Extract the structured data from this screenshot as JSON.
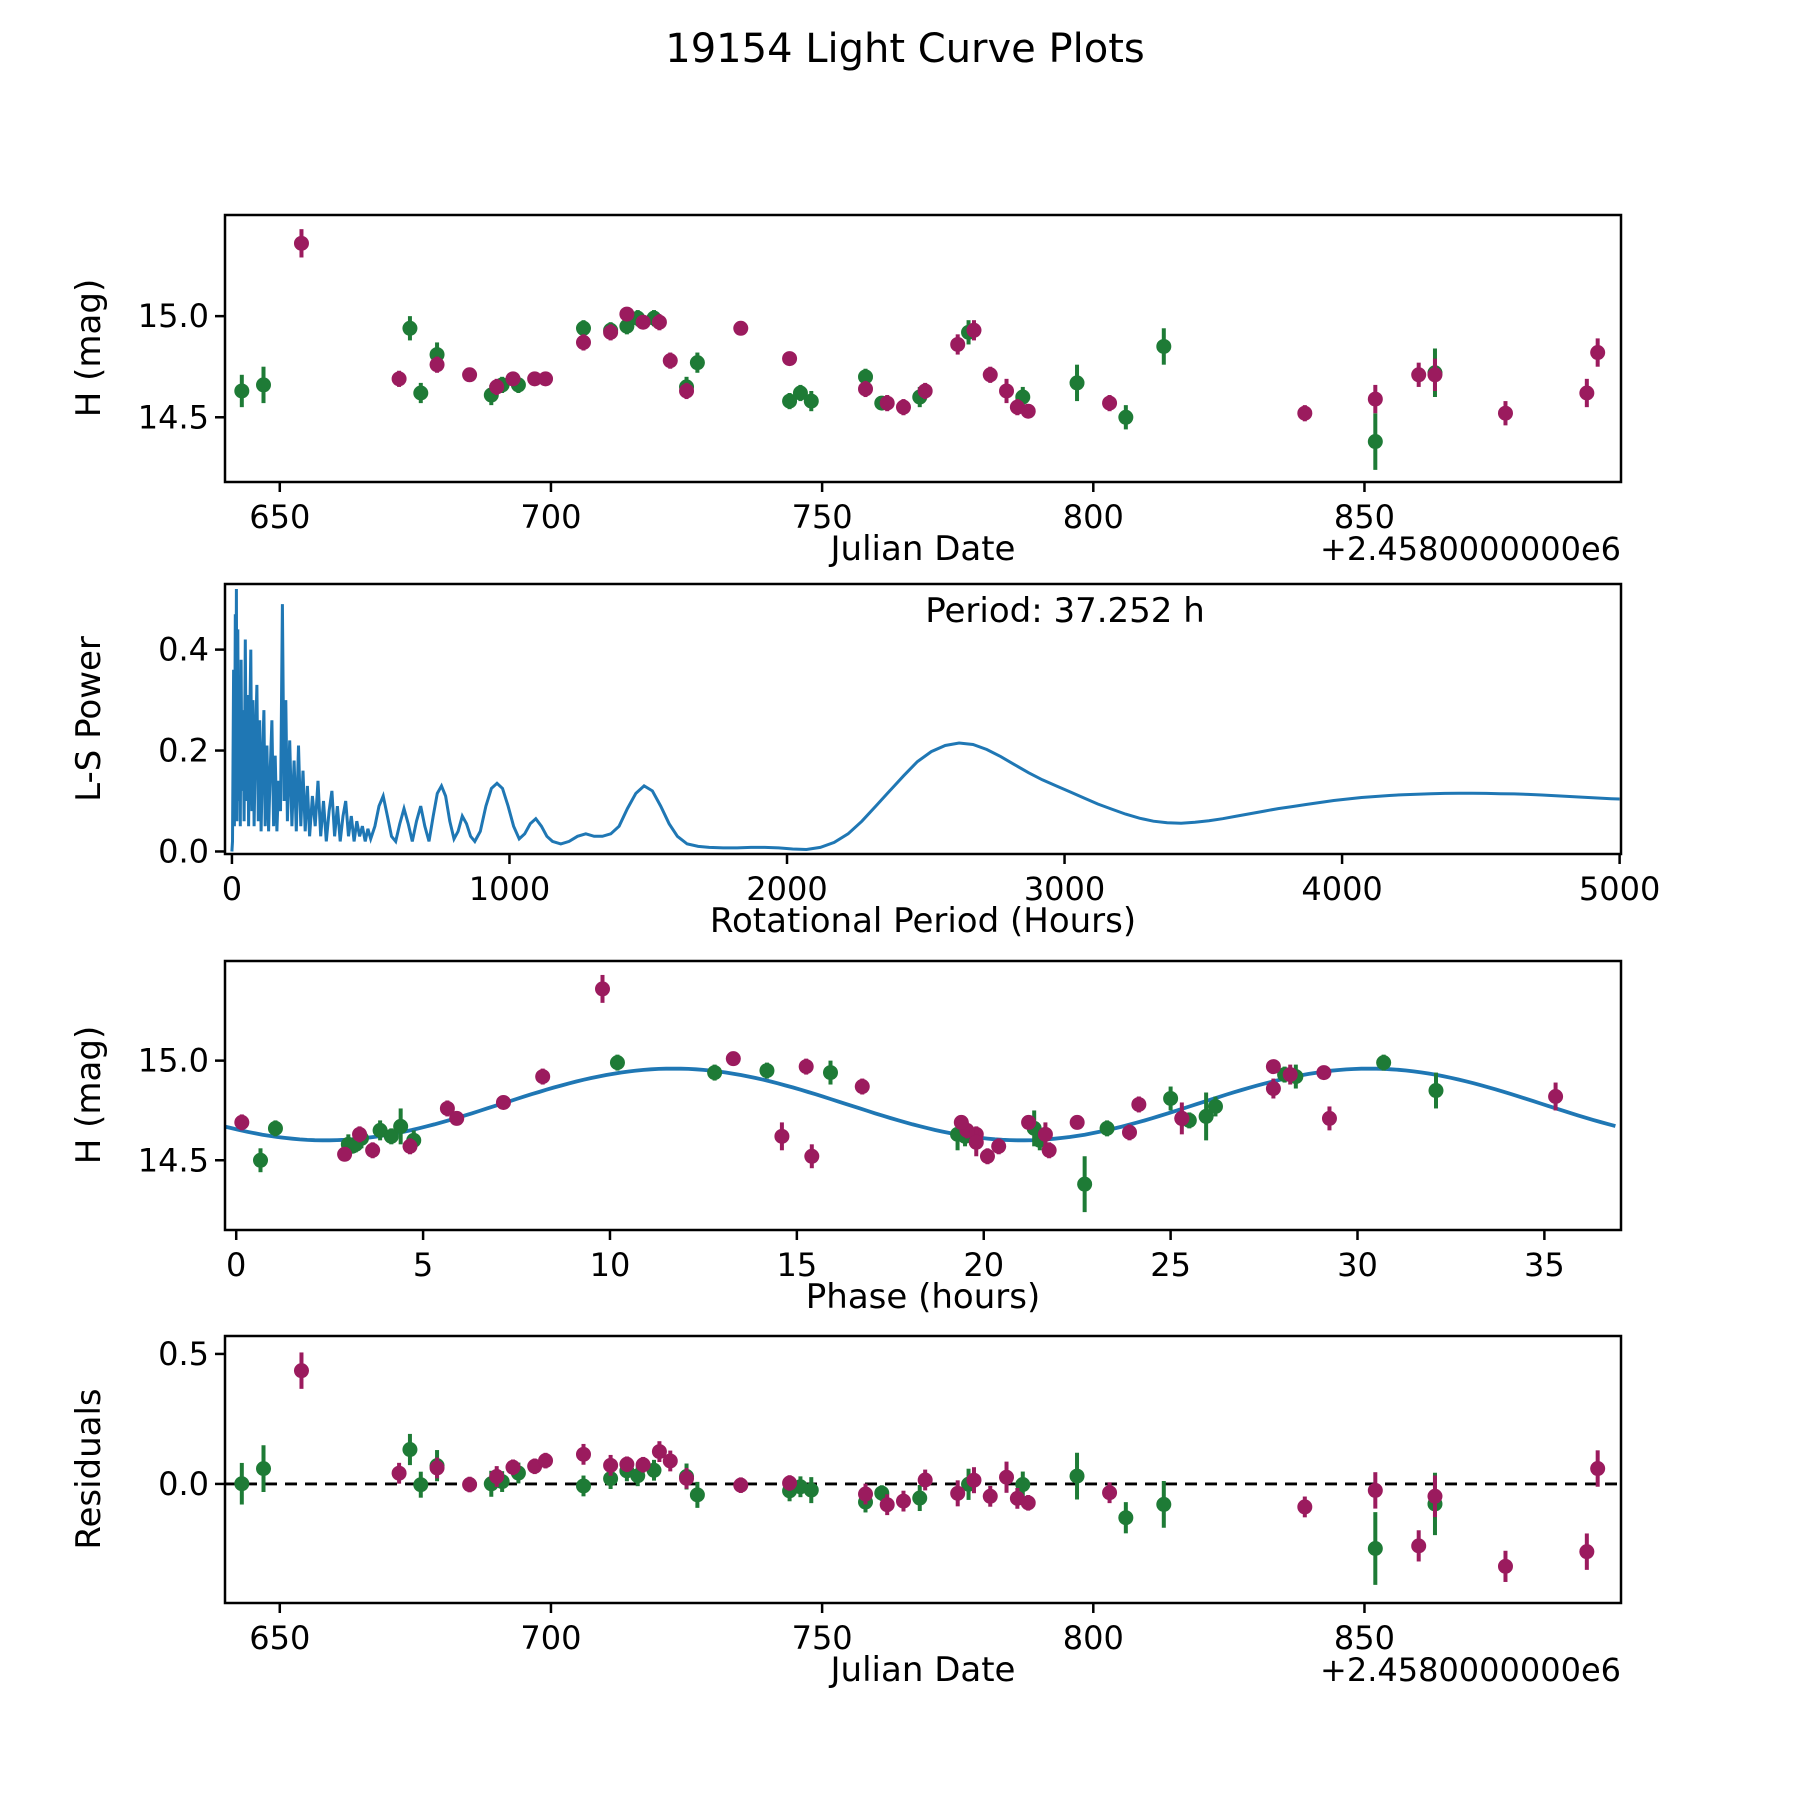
{
  "chart_data": {
    "figure_title": "19154 Light Curve Plots",
    "colors": {
      "green": "#1e7b36",
      "purple": "#9b1b5e",
      "blue": "#1f77b4",
      "axis": "#000000"
    },
    "layout_hints": {
      "grid": false,
      "legend": false,
      "panels": 4,
      "background": "#ffffff"
    },
    "fit": {
      "mean": 14.78,
      "amplitude": 0.18,
      "period_hours": 18.626,
      "phase_of_max": 11.7
    },
    "plots": [
      {
        "id": "lightcurve",
        "type": "scatter",
        "xlabel": "Julian Date",
        "ylabel": "H (mag)",
        "offset_label": "+2.4580000000e6",
        "xlim": [
          639.9,
          897.3
        ],
        "ylim": [
          14.18,
          15.5
        ],
        "xticks": {
          "values": [
            650,
            700,
            750,
            800,
            850
          ],
          "labels": [
            "650",
            "700",
            "750",
            "800",
            "850"
          ]
        },
        "yticks": {
          "values": [
            14.5,
            15.0
          ],
          "labels": [
            "14.5",
            "15.0"
          ]
        }
      },
      {
        "id": "periodogram",
        "type": "line",
        "xlabel": "Rotational Period (Hours)",
        "ylabel": "L-S Power",
        "annotation": "Period: 37.252 h",
        "xlim": [
          -25,
          5005
        ],
        "ylim": [
          -0.005,
          0.53
        ],
        "xticks": {
          "values": [
            0,
            1000,
            2000,
            3000,
            4000,
            5000
          ],
          "labels": [
            "0",
            "1000",
            "2000",
            "3000",
            "4000",
            "5000"
          ]
        },
        "yticks": {
          "values": [
            0.0,
            0.2,
            0.4
          ],
          "labels": [
            "0.0",
            "0.2",
            "0.4"
          ]
        }
      },
      {
        "id": "phase",
        "type": "scatter",
        "xlabel": "Phase (hours)",
        "ylabel": "H (mag)",
        "xlim": [
          -0.3,
          37.05
        ],
        "ylim": [
          14.15,
          15.5
        ],
        "xticks": {
          "values": [
            0,
            5,
            10,
            15,
            20,
            25,
            30,
            35
          ],
          "labels": [
            "0",
            "5",
            "10",
            "15",
            "20",
            "25",
            "30",
            "35"
          ]
        },
        "yticks": {
          "values": [
            14.5,
            15.0
          ],
          "labels": [
            "14.5",
            "15.0"
          ]
        }
      },
      {
        "id": "residuals",
        "type": "scatter",
        "xlabel": "Julian Date",
        "ylabel": "Residuals",
        "offset_label": "+2.4580000000e6",
        "xlim": [
          639.9,
          897.3
        ],
        "ylim": [
          -0.458,
          0.569
        ],
        "xticks": {
          "values": [
            650,
            700,
            750,
            800,
            850
          ],
          "labels": [
            "650",
            "700",
            "750",
            "800",
            "850"
          ]
        },
        "yticks": {
          "values": [
            0.0,
            0.5
          ],
          "labels": [
            "0.0",
            "0.5"
          ]
        },
        "zero_line": 0.0
      }
    ],
    "series": {
      "green": {
        "name": "dataset-green",
        "color": "#1e7b36",
        "columns": [
          "julian_date_minus_2458000",
          "H_mag",
          "err",
          "phase_hours"
        ],
        "points": [
          [
            643,
            14.63,
            0.08,
            19.3
          ],
          [
            647,
            14.66,
            0.09,
            21.35
          ],
          [
            674,
            14.94,
            0.06,
            15.9
          ],
          [
            676,
            14.62,
            0.05,
            19.5
          ],
          [
            679,
            14.81,
            0.06,
            25.0
          ],
          [
            689,
            14.61,
            0.05,
            3.35
          ],
          [
            691,
            14.66,
            0.04,
            23.3
          ],
          [
            694,
            14.66,
            0.04,
            1.05
          ],
          [
            706,
            14.94,
            0.04,
            12.8
          ],
          [
            711,
            14.93,
            0.04,
            28.05
          ],
          [
            714,
            14.95,
            0.04,
            14.2
          ],
          [
            716,
            14.99,
            0.04,
            30.7
          ],
          [
            719,
            14.99,
            0.04,
            10.2
          ],
          [
            725,
            14.65,
            0.05,
            3.85
          ],
          [
            727,
            14.77,
            0.05,
            26.2
          ],
          [
            744,
            14.58,
            0.04,
            3.2
          ],
          [
            746,
            14.62,
            0.04,
            4.15
          ],
          [
            748,
            14.58,
            0.05,
            3.0
          ],
          [
            758,
            14.7,
            0.04,
            25.5
          ],
          [
            761,
            14.57,
            0.03,
            3.1
          ],
          [
            768,
            14.6,
            0.05,
            4.75
          ],
          [
            777,
            14.92,
            0.06,
            28.35
          ],
          [
            787,
            14.6,
            0.05,
            21.5
          ],
          [
            797,
            14.67,
            0.09,
            4.4
          ],
          [
            806,
            14.5,
            0.06,
            0.65
          ],
          [
            813,
            14.85,
            0.09,
            32.1
          ],
          [
            852,
            14.38,
            0.14,
            22.7
          ],
          [
            863,
            14.72,
            0.12,
            25.95
          ]
        ]
      },
      "purple": {
        "name": "dataset-purple",
        "color": "#9b1b5e",
        "columns": [
          "julian_date_minus_2458000",
          "H_mag",
          "err",
          "phase_hours"
        ],
        "points": [
          [
            654,
            15.36,
            0.07,
            9.8
          ],
          [
            672,
            14.69,
            0.04,
            0.15
          ],
          [
            679,
            14.76,
            0.04,
            5.65
          ],
          [
            685,
            14.71,
            0.03,
            5.9
          ],
          [
            690,
            14.65,
            0.04,
            19.55
          ],
          [
            693,
            14.69,
            0.03,
            19.4
          ],
          [
            697,
            14.69,
            0.03,
            22.5
          ],
          [
            699,
            14.69,
            0.03,
            21.2
          ],
          [
            706,
            14.87,
            0.04,
            16.75
          ],
          [
            711,
            14.92,
            0.04,
            8.2
          ],
          [
            714,
            15.01,
            0.03,
            13.3
          ],
          [
            717,
            14.97,
            0.03,
            27.75
          ],
          [
            720,
            14.97,
            0.04,
            15.25
          ],
          [
            722,
            14.78,
            0.04,
            24.15
          ],
          [
            725,
            14.63,
            0.04,
            3.3
          ],
          [
            735,
            14.94,
            0.03,
            29.1
          ],
          [
            744,
            14.79,
            0.03,
            7.15
          ],
          [
            758,
            14.64,
            0.04,
            23.9
          ],
          [
            762,
            14.57,
            0.04,
            4.65
          ],
          [
            765,
            14.55,
            0.04,
            3.65
          ],
          [
            769,
            14.63,
            0.04,
            19.8
          ],
          [
            775,
            14.86,
            0.05,
            27.75
          ],
          [
            778,
            14.93,
            0.05,
            28.2
          ],
          [
            781,
            14.71,
            0.04,
            25.3
          ],
          [
            784,
            14.63,
            0.06,
            21.65
          ],
          [
            786,
            14.55,
            0.04,
            21.75
          ],
          [
            788,
            14.53,
            0.03,
            2.9
          ],
          [
            803,
            14.57,
            0.04,
            20.4
          ],
          [
            839,
            14.52,
            0.04,
            20.1
          ],
          [
            852,
            14.59,
            0.07,
            19.8
          ],
          [
            860,
            14.71,
            0.06,
            29.25
          ],
          [
            863,
            14.71,
            0.08,
            25.3
          ],
          [
            876,
            14.52,
            0.06,
            15.4
          ],
          [
            891,
            14.62,
            0.07,
            14.6
          ],
          [
            893,
            14.82,
            0.07,
            35.3
          ]
        ]
      }
    },
    "periodogram_curve": [
      [
        0,
        0.0
      ],
      [
        2,
        0.02
      ],
      [
        6,
        0.36
      ],
      [
        9,
        0.05
      ],
      [
        12,
        0.47
      ],
      [
        14,
        0.08
      ],
      [
        16,
        0.52
      ],
      [
        18,
        0.06
      ],
      [
        21,
        0.44
      ],
      [
        24,
        0.1
      ],
      [
        27,
        0.32
      ],
      [
        30,
        0.05
      ],
      [
        33,
        0.38
      ],
      [
        36,
        0.12
      ],
      [
        40,
        0.28
      ],
      [
        44,
        0.06
      ],
      [
        48,
        0.42
      ],
      [
        52,
        0.1
      ],
      [
        56,
        0.31
      ],
      [
        60,
        0.05
      ],
      [
        64,
        0.25
      ],
      [
        68,
        0.4
      ],
      [
        72,
        0.08
      ],
      [
        76,
        0.3
      ],
      [
        80,
        0.05
      ],
      [
        85,
        0.22
      ],
      [
        90,
        0.33
      ],
      [
        95,
        0.06
      ],
      [
        100,
        0.26
      ],
      [
        105,
        0.04
      ],
      [
        110,
        0.18
      ],
      [
        115,
        0.28
      ],
      [
        120,
        0.05
      ],
      [
        126,
        0.21
      ],
      [
        132,
        0.04
      ],
      [
        138,
        0.16
      ],
      [
        144,
        0.26
      ],
      [
        150,
        0.05
      ],
      [
        156,
        0.19
      ],
      [
        162,
        0.04
      ],
      [
        168,
        0.14
      ],
      [
        175,
        0.08
      ],
      [
        182,
        0.49
      ],
      [
        188,
        0.1
      ],
      [
        194,
        0.3
      ],
      [
        200,
        0.06
      ],
      [
        208,
        0.22
      ],
      [
        216,
        0.05
      ],
      [
        224,
        0.18
      ],
      [
        232,
        0.04
      ],
      [
        240,
        0.21
      ],
      [
        248,
        0.05
      ],
      [
        256,
        0.16
      ],
      [
        264,
        0.04
      ],
      [
        272,
        0.13
      ],
      [
        280,
        0.03
      ],
      [
        290,
        0.11
      ],
      [
        300,
        0.05
      ],
      [
        310,
        0.14
      ],
      [
        320,
        0.03
      ],
      [
        330,
        0.1
      ],
      [
        340,
        0.02
      ],
      [
        350,
        0.08
      ],
      [
        360,
        0.12
      ],
      [
        370,
        0.03
      ],
      [
        380,
        0.09
      ],
      [
        390,
        0.02
      ],
      [
        400,
        0.07
      ],
      [
        410,
        0.1
      ],
      [
        420,
        0.03
      ],
      [
        430,
        0.07
      ],
      [
        440,
        0.02
      ],
      [
        450,
        0.06
      ],
      [
        460,
        0.03
      ],
      [
        470,
        0.05
      ],
      [
        480,
        0.02
      ],
      [
        490,
        0.045
      ],
      [
        500,
        0.025
      ],
      [
        515,
        0.05
      ],
      [
        530,
        0.09
      ],
      [
        545,
        0.11
      ],
      [
        560,
        0.07
      ],
      [
        575,
        0.03
      ],
      [
        590,
        0.02
      ],
      [
        605,
        0.055
      ],
      [
        620,
        0.085
      ],
      [
        635,
        0.055
      ],
      [
        650,
        0.02
      ],
      [
        665,
        0.06
      ],
      [
        680,
        0.09
      ],
      [
        695,
        0.05
      ],
      [
        710,
        0.02
      ],
      [
        725,
        0.07
      ],
      [
        740,
        0.115
      ],
      [
        755,
        0.13
      ],
      [
        770,
        0.11
      ],
      [
        785,
        0.06
      ],
      [
        800,
        0.025
      ],
      [
        815,
        0.04
      ],
      [
        830,
        0.07
      ],
      [
        845,
        0.055
      ],
      [
        860,
        0.03
      ],
      [
        875,
        0.02
      ],
      [
        895,
        0.04
      ],
      [
        915,
        0.09
      ],
      [
        935,
        0.125
      ],
      [
        955,
        0.135
      ],
      [
        975,
        0.125
      ],
      [
        995,
        0.09
      ],
      [
        1015,
        0.05
      ],
      [
        1035,
        0.025
      ],
      [
        1055,
        0.035
      ],
      [
        1075,
        0.055
      ],
      [
        1095,
        0.065
      ],
      [
        1115,
        0.05
      ],
      [
        1135,
        0.03
      ],
      [
        1155,
        0.02
      ],
      [
        1185,
        0.015
      ],
      [
        1215,
        0.02
      ],
      [
        1245,
        0.03
      ],
      [
        1275,
        0.035
      ],
      [
        1305,
        0.03
      ],
      [
        1335,
        0.03
      ],
      [
        1365,
        0.035
      ],
      [
        1395,
        0.05
      ],
      [
        1425,
        0.085
      ],
      [
        1455,
        0.115
      ],
      [
        1485,
        0.13
      ],
      [
        1515,
        0.12
      ],
      [
        1545,
        0.09
      ],
      [
        1575,
        0.055
      ],
      [
        1605,
        0.03
      ],
      [
        1640,
        0.015
      ],
      [
        1680,
        0.01
      ],
      [
        1720,
        0.008
      ],
      [
        1770,
        0.007
      ],
      [
        1820,
        0.007
      ],
      [
        1870,
        0.008
      ],
      [
        1920,
        0.008
      ],
      [
        1970,
        0.007
      ],
      [
        2020,
        0.005
      ],
      [
        2070,
        0.004
      ],
      [
        2120,
        0.008
      ],
      [
        2170,
        0.018
      ],
      [
        2220,
        0.035
      ],
      [
        2270,
        0.06
      ],
      [
        2320,
        0.09
      ],
      [
        2370,
        0.12
      ],
      [
        2420,
        0.15
      ],
      [
        2470,
        0.178
      ],
      [
        2520,
        0.198
      ],
      [
        2570,
        0.21
      ],
      [
        2620,
        0.215
      ],
      [
        2670,
        0.212
      ],
      [
        2720,
        0.202
      ],
      [
        2770,
        0.188
      ],
      [
        2820,
        0.172
      ],
      [
        2870,
        0.156
      ],
      [
        2920,
        0.142
      ],
      [
        2970,
        0.13
      ],
      [
        3020,
        0.118
      ],
      [
        3070,
        0.106
      ],
      [
        3120,
        0.094
      ],
      [
        3170,
        0.084
      ],
      [
        3220,
        0.074
      ],
      [
        3270,
        0.066
      ],
      [
        3320,
        0.06
      ],
      [
        3370,
        0.057
      ],
      [
        3420,
        0.056
      ],
      [
        3470,
        0.058
      ],
      [
        3520,
        0.061
      ],
      [
        3570,
        0.065
      ],
      [
        3620,
        0.07
      ],
      [
        3670,
        0.075
      ],
      [
        3720,
        0.08
      ],
      [
        3770,
        0.085
      ],
      [
        3820,
        0.089
      ],
      [
        3870,
        0.093
      ],
      [
        3920,
        0.097
      ],
      [
        3970,
        0.101
      ],
      [
        4020,
        0.104
      ],
      [
        4070,
        0.107
      ],
      [
        4120,
        0.109
      ],
      [
        4170,
        0.111
      ],
      [
        4220,
        0.1125
      ],
      [
        4270,
        0.1135
      ],
      [
        4320,
        0.1145
      ],
      [
        4370,
        0.115
      ],
      [
        4420,
        0.1155
      ],
      [
        4470,
        0.1155
      ],
      [
        4520,
        0.115
      ],
      [
        4570,
        0.1145
      ],
      [
        4620,
        0.114
      ],
      [
        4670,
        0.113
      ],
      [
        4720,
        0.112
      ],
      [
        4770,
        0.1105
      ],
      [
        4820,
        0.109
      ],
      [
        4870,
        0.1075
      ],
      [
        4920,
        0.106
      ],
      [
        4970,
        0.1045
      ],
      [
        5000,
        0.104
      ]
    ]
  }
}
